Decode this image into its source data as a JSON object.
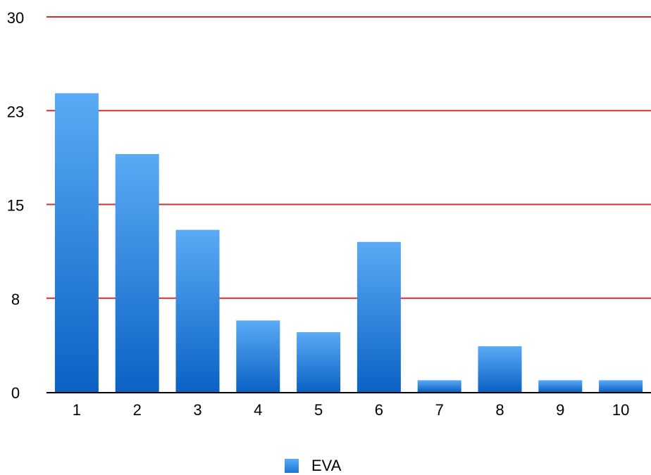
{
  "chart_data": {
    "type": "bar",
    "categories": [
      "1",
      "2",
      "3",
      "4",
      "5",
      "6",
      "7",
      "8",
      "9",
      "10"
    ],
    "series": [
      {
        "name": "EVA",
        "values": [
          24.3,
          19.3,
          13.1,
          6.1,
          5.1,
          12.2,
          1.0,
          3.9,
          1.0,
          1.0
        ]
      }
    ],
    "ylim": [
      0,
      30
    ],
    "yticks": [
      "0",
      "8",
      "15",
      "23",
      "30"
    ],
    "gridline_color": "#d0302e",
    "bar_color_top": "#5aaaf5",
    "bar_color_bottom": "#0b62c4",
    "grid": true,
    "legend_position": "bottom"
  },
  "legend": {
    "label": "EVA"
  }
}
